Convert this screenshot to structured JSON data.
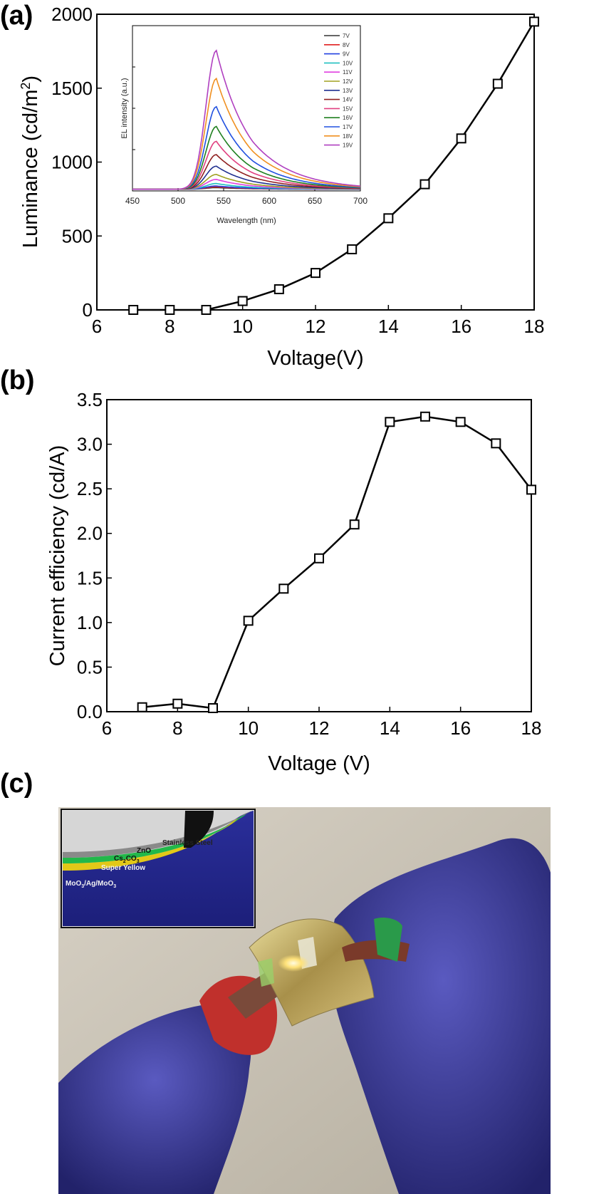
{
  "panels": {
    "a": {
      "label": "(a)"
    },
    "b": {
      "label": "(b)"
    },
    "c": {
      "label": "(c)"
    }
  },
  "chart_data": [
    {
      "id": "a",
      "type": "line",
      "xlabel": "Voltage(V)",
      "ylabel": "Luminance (cd/m",
      "ylabel_sup": "2",
      "ylabel_end": ")",
      "xlim": [
        6,
        18
      ],
      "ylim": [
        0,
        2000
      ],
      "xticks": [
        6,
        8,
        10,
        12,
        14,
        16,
        18
      ],
      "yticks": [
        0,
        500,
        1000,
        1500,
        2000
      ],
      "grid": false,
      "marker": "open-square",
      "series": [
        {
          "x": [
            7,
            8,
            9,
            10,
            11,
            12,
            13,
            14,
            15,
            16,
            17,
            18
          ],
          "y": [
            0,
            0,
            0,
            60,
            140,
            250,
            410,
            620,
            850,
            1160,
            1530,
            1950
          ]
        }
      ]
    },
    {
      "id": "a-inset",
      "type": "line",
      "xlabel": "Wavelength (nm)",
      "ylabel": "EL intensity (a.u.)",
      "xlim": [
        450,
        700
      ],
      "xticks": [
        450,
        500,
        550,
        600,
        650,
        700
      ],
      "legend_position": "top-right",
      "peak_wavelength": 542,
      "series": [
        {
          "name": "7V",
          "color": "#333333",
          "peak": 0.01
        },
        {
          "name": "8V",
          "color": "#e02020",
          "peak": 0.015
        },
        {
          "name": "9V",
          "color": "#2040e0",
          "peak": 0.02
        },
        {
          "name": "10V",
          "color": "#20c0c0",
          "peak": 0.035
        },
        {
          "name": "11V",
          "color": "#e040e0",
          "peak": 0.06
        },
        {
          "name": "12V",
          "color": "#a0a020",
          "peak": 0.09
        },
        {
          "name": "13V",
          "color": "#203090",
          "peak": 0.14
        },
        {
          "name": "14V",
          "color": "#902020",
          "peak": 0.21
        },
        {
          "name": "15V",
          "color": "#e04080",
          "peak": 0.29
        },
        {
          "name": "16V",
          "color": "#208020",
          "peak": 0.38
        },
        {
          "name": "17V",
          "color": "#2050e0",
          "peak": 0.5
        },
        {
          "name": "18V",
          "color": "#f09020",
          "peak": 0.67
        },
        {
          "name": "19V",
          "color": "#b040c0",
          "peak": 0.84
        }
      ]
    },
    {
      "id": "b",
      "type": "line",
      "xlabel": "Voltage (V)",
      "ylabel": "Current efficiency (cd/A)",
      "xlim": [
        6,
        18
      ],
      "ylim": [
        0,
        3.5
      ],
      "xticks": [
        6,
        8,
        10,
        12,
        14,
        16,
        18
      ],
      "yticks": [
        0,
        0.5,
        1.0,
        1.5,
        2.0,
        2.5,
        3.0,
        3.5
      ],
      "ytick_labels": [
        "0.0",
        "0.5",
        "1.0",
        "1.5",
        "2.0",
        "2.5",
        "3.0",
        "3.5"
      ],
      "grid": false,
      "marker": "open-square",
      "series": [
        {
          "x": [
            7,
            8,
            9,
            10,
            11,
            12,
            13,
            14,
            15,
            16,
            17,
            18
          ],
          "y": [
            0.05,
            0.09,
            0.04,
            1.02,
            1.38,
            1.72,
            2.1,
            3.25,
            3.31,
            3.25,
            3.01,
            2.49
          ]
        }
      ]
    }
  ],
  "photo": {
    "inset_layers": [
      {
        "label": "Stainless Steel",
        "color": "#222222"
      },
      {
        "label": "ZnO",
        "color": "#111111"
      },
      {
        "label": "Cs",
        "sub1": "2",
        "mid": "CO",
        "sub2": "3",
        "color": "#111111"
      },
      {
        "label": "Super Yellow",
        "color": "#f2f2f2"
      },
      {
        "label": "MoO",
        "sub1": "3",
        "mid": "/Ag/MoO",
        "sub2": "3",
        "color": "#f2f2f2"
      }
    ],
    "colors": {
      "wall": "#c9c2b4",
      "glove": "#3a3a9a",
      "film": "#c9b36a",
      "emission": "#ffe27a",
      "clip": "#c0302c"
    }
  }
}
